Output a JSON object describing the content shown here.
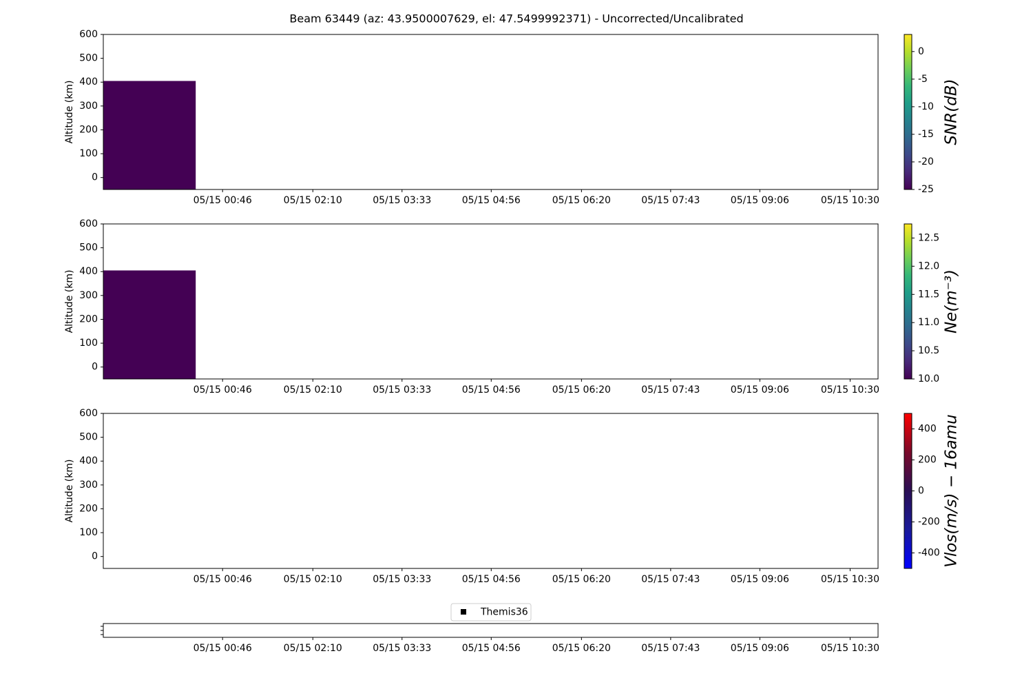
{
  "title": "Beam 63449 (az: 43.9500007629, el: 47.5499992371) - Uncorrected/Uncalibrated",
  "chart_data": [
    {
      "type": "heatmap",
      "ylabel": "Altitude (km)",
      "xlim": [
        -65,
        656
      ],
      "xticks": [
        {
          "value": 46,
          "label": "05/15 00:46"
        },
        {
          "value": 130,
          "label": "05/15 02:10"
        },
        {
          "value": 213,
          "label": "05/15 03:33"
        },
        {
          "value": 296,
          "label": "05/15 04:56"
        },
        {
          "value": 380,
          "label": "05/15 06:20"
        },
        {
          "value": 463,
          "label": "05/15 07:43"
        },
        {
          "value": 546,
          "label": "05/15 09:06"
        },
        {
          "value": 630,
          "label": "05/15 10:30"
        }
      ],
      "ylim": [
        -50,
        600
      ],
      "yticks": [
        0,
        100,
        200,
        300,
        400,
        500,
        600
      ],
      "xbins": [
        -65,
        21
      ],
      "ybins": [
        -50,
        405
      ],
      "values": [
        [
          -25
        ]
      ],
      "colorbar": {
        "label": "SNR(dB)",
        "colormap": "viridis",
        "lim": [
          -25,
          3.1
        ],
        "ticks": [
          -25,
          -20,
          -15,
          -10,
          -5,
          0
        ]
      }
    },
    {
      "type": "heatmap",
      "ylabel": "Altitude (km)",
      "xlim": [
        -65,
        656
      ],
      "xticks": [
        {
          "value": 46,
          "label": "05/15 00:46"
        },
        {
          "value": 130,
          "label": "05/15 02:10"
        },
        {
          "value": 213,
          "label": "05/15 03:33"
        },
        {
          "value": 296,
          "label": "05/15 04:56"
        },
        {
          "value": 380,
          "label": "05/15 06:20"
        },
        {
          "value": 463,
          "label": "05/15 07:43"
        },
        {
          "value": 546,
          "label": "05/15 09:06"
        },
        {
          "value": 630,
          "label": "05/15 10:30"
        }
      ],
      "ylim": [
        -50,
        600
      ],
      "yticks": [
        0,
        100,
        200,
        300,
        400,
        500,
        600
      ],
      "xbins": [
        -65,
        21
      ],
      "ybins": [
        -50,
        405
      ],
      "values": [
        [
          10
        ]
      ],
      "colorbar": {
        "label": "Ne(m⁻³)",
        "colormap": "viridis",
        "lim": [
          10,
          12.75
        ],
        "ticks": [
          {
            "value": 10,
            "label": "10.0"
          },
          10.5,
          {
            "value": 11,
            "label": "11.0"
          },
          11.5,
          {
            "value": 12,
            "label": "12.0"
          },
          12.5
        ]
      }
    },
    {
      "type": "heatmap",
      "ylabel": "Altitude (km)",
      "xlim": [
        -65,
        656
      ],
      "xticks": [
        {
          "value": 46,
          "label": "05/15 00:46"
        },
        {
          "value": 130,
          "label": "05/15 02:10"
        },
        {
          "value": 213,
          "label": "05/15 03:33"
        },
        {
          "value": 296,
          "label": "05/15 04:56"
        },
        {
          "value": 380,
          "label": "05/15 06:20"
        },
        {
          "value": 463,
          "label": "05/15 07:43"
        },
        {
          "value": 546,
          "label": "05/15 09:06"
        },
        {
          "value": 630,
          "label": "05/15 10:30"
        }
      ],
      "ylim": [
        -50,
        600
      ],
      "yticks": [
        0,
        100,
        200,
        300,
        400,
        500,
        600
      ],
      "xbins": [],
      "ybins": [],
      "values": [],
      "colorbar": {
        "label": "Vlos(m/s) − 16amu",
        "colormap": "blue-dark-red",
        "lim": [
          -500,
          500
        ],
        "ticks": [
          -400,
          -200,
          0,
          200,
          400
        ]
      }
    },
    {
      "type": "scatter",
      "xlim": [
        -65,
        656
      ],
      "xticks": [
        {
          "value": 46,
          "label": "05/15 00:46"
        },
        {
          "value": 130,
          "label": "05/15 02:10"
        },
        {
          "value": 213,
          "label": "05/15 03:33"
        },
        {
          "value": 296,
          "label": "05/15 04:56"
        },
        {
          "value": 380,
          "label": "05/15 06:20"
        },
        {
          "value": 463,
          "label": "05/15 07:43"
        },
        {
          "value": 546,
          "label": "05/15 09:06"
        },
        {
          "value": 630,
          "label": "05/15 10:30"
        }
      ],
      "legend": "upper center",
      "series": [
        {
          "name": "Themis36",
          "color": "#000000",
          "x": [],
          "values": []
        }
      ]
    }
  ]
}
